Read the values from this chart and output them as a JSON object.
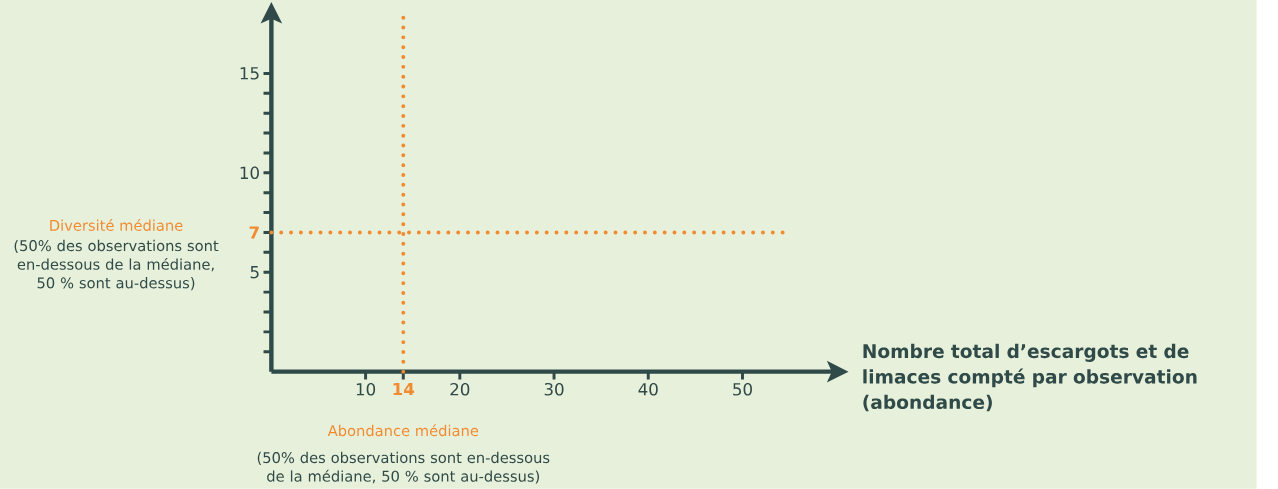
{
  "chart_data": {
    "type": "line",
    "xlabel": "Nombre total d’escargots et de limaces compté par observation (abondance)",
    "xlim": [
      0,
      60
    ],
    "ylim": [
      0,
      18
    ],
    "xticks": [
      10,
      14,
      20,
      30,
      40,
      50
    ],
    "yticks": [
      {
        "value": 1,
        "label": null
      },
      {
        "value": 2,
        "label": null
      },
      {
        "value": 3,
        "label": null
      },
      {
        "value": 4,
        "label": null
      },
      5,
      {
        "value": 6,
        "label": null
      },
      7,
      {
        "value": 8,
        "label": null
      },
      {
        "value": 9,
        "label": null
      },
      10,
      {
        "value": 11,
        "label": null
      },
      {
        "value": 12,
        "label": null
      },
      {
        "value": 13,
        "label": null
      },
      {
        "value": 14,
        "label": null
      },
      15
    ],
    "ref_lines": [
      {
        "axis": "x",
        "value": 14,
        "label": "Abondance médiane",
        "color": "#f28a30",
        "line_style": "dotted"
      },
      {
        "axis": "y",
        "value": 7,
        "label": "Diversité médiane",
        "color": "#f28a30",
        "line_style": "dotted"
      }
    ],
    "annotations": [
      "(50% des observations sont en-dessous de la médiane, 50 % sont au-dessus)",
      "(50% des observations sont en-dessous de la médiane, 50 % sont au-dessus)"
    ]
  }
}
